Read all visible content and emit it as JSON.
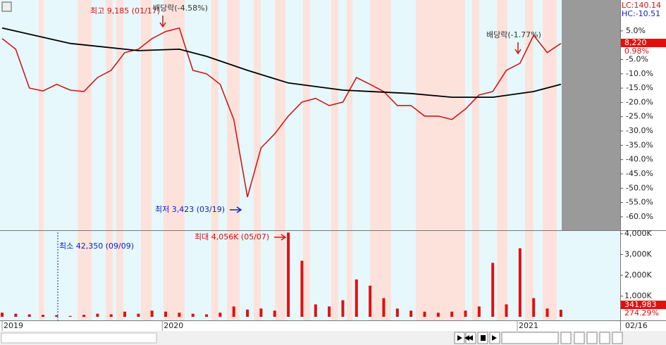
{
  "chart_data": [
    {
      "type": "line",
      "xlim": [
        0,
        90.7
      ],
      "ylim": [
        -64.7,
        15.8
      ],
      "yticks": [
        {
          "value": 5,
          "label": "5.0%"
        },
        {
          "value": -5,
          "label": "-5.0%"
        },
        {
          "value": -10,
          "label": "-10.0%"
        },
        {
          "value": -15,
          "label": "-15.0%"
        },
        {
          "value": -20,
          "label": "-20.0%"
        },
        {
          "value": -25,
          "label": "-25.0%"
        },
        {
          "value": -30,
          "label": "-30.0%"
        },
        {
          "value": -35,
          "label": "-35.0%"
        },
        {
          "value": -40,
          "label": "-40.0%"
        },
        {
          "value": -45,
          "label": "-45.0%"
        },
        {
          "value": -50,
          "label": "-50.0%"
        },
        {
          "value": -55,
          "label": "-55.0%"
        },
        {
          "value": -60,
          "label": "-60.0%"
        }
      ],
      "series": [
        {
          "color": "#d01818",
          "x": [
            0,
            2,
            4,
            6,
            8,
            10,
            12,
            14,
            16,
            18,
            20,
            22,
            24,
            26,
            28,
            30,
            32,
            34,
            36,
            38,
            40,
            42,
            44,
            46,
            48,
            50,
            52,
            54,
            56,
            58,
            60,
            62,
            64,
            66,
            68,
            70,
            72,
            74,
            76,
            78,
            80,
            82
          ],
          "values": [
            2.3,
            -1.4,
            -15,
            -16,
            -13.7,
            -15.7,
            -16.2,
            -11.3,
            -8.8,
            -2.6,
            -1.4,
            2.3,
            4.8,
            6,
            -8.8,
            -10,
            -13.7,
            -26,
            -53.1,
            -35.9,
            -31,
            -24.8,
            -19.9,
            -18.6,
            -21.1,
            -19.9,
            -11.3,
            -13.7,
            -16.2,
            -21.1,
            -21.1,
            -24.8,
            -24.8,
            -26,
            -22.3,
            -17.4,
            -16.2,
            -8.8,
            -6.3,
            3.5,
            -2.6,
            0.6
          ]
        },
        {
          "color": "#000000",
          "x": [
            0,
            10,
            20,
            26,
            30,
            36,
            42,
            50,
            60,
            66,
            72,
            78,
            82
          ],
          "values": [
            6,
            0.6,
            -1.9,
            -1.4,
            -3.9,
            -8.8,
            -13.2,
            -15.7,
            -16.9,
            -18.2,
            -18.2,
            -16.2,
            -13.7
          ]
        }
      ],
      "annotations": [
        "최고 9,185 (01/17)",
        "배당락(-4.58%)",
        "배당락(-1.77%)",
        "최저 3,423 (03/19)"
      ],
      "lc_label": "LC:140.14",
      "hc_label": "HC:-10.51",
      "last_label": "8,220",
      "change_label": "0.98%"
    },
    {
      "type": "bar",
      "xlim": [
        0,
        90.7
      ],
      "xticks": [
        {
          "value": 0,
          "label": "2019"
        },
        {
          "value": 23.5,
          "label": "2020"
        },
        {
          "value": 75.6,
          "label": "2021"
        }
      ],
      "ylim": [
        0,
        4135600
      ],
      "yticks": [
        {
          "value": 1000000,
          "label": "1,000K"
        },
        {
          "value": 2000000,
          "label": "2,000K"
        },
        {
          "value": 3000000,
          "label": "3,000K"
        },
        {
          "value": 4000000,
          "label": "4,000K"
        }
      ],
      "color": "#e01010",
      "x": [
        0,
        2,
        4,
        6,
        8,
        10,
        12,
        14,
        16,
        18,
        20,
        22,
        24,
        26,
        28,
        30,
        32,
        34,
        36,
        38,
        40,
        42,
        44,
        46,
        48,
        50,
        52,
        54,
        56,
        58,
        60,
        62,
        64,
        66,
        68,
        70,
        72,
        74,
        76,
        78,
        80,
        82
      ],
      "values": [
        200000,
        150000,
        120000,
        100000,
        80000,
        42350,
        100000,
        150000,
        120000,
        250000,
        150000,
        300000,
        250000,
        200000,
        150000,
        120000,
        200000,
        500000,
        350000,
        400000,
        300000,
        4056000,
        2700000,
        600000,
        500000,
        800000,
        1800000,
        1500000,
        900000,
        400000,
        300000,
        250000,
        200000,
        250000,
        300000,
        500000,
        2600000,
        600000,
        3300000,
        900000,
        400000,
        341983
      ],
      "annotations": [
        "최대 4,056K (05/07)",
        "최소 42,350 (09/09)"
      ],
      "last_label": "341,983",
      "ratio_label": "274.29%",
      "date_label": "02/16"
    }
  ]
}
